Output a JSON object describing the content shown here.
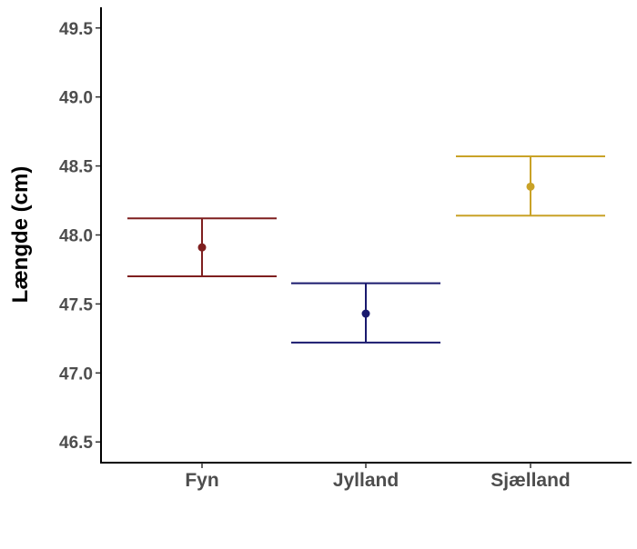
{
  "chart_data": {
    "type": "scatter",
    "subtype": "errorbar",
    "title": "",
    "xlabel": "",
    "ylabel": "Længde (cm)",
    "ylim": [
      46.35,
      49.65
    ],
    "yticks": [
      "46.5",
      "47.0",
      "47.5",
      "48.0",
      "48.5",
      "49.0",
      "49.5"
    ],
    "grid": false,
    "legend": "none",
    "categories": [
      "Fyn",
      "Jylland",
      "Sjælland"
    ],
    "series": [
      {
        "name": "Fyn",
        "mean": 47.91,
        "lower": 47.7,
        "upper": 48.12,
        "color": "#7f1f1f"
      },
      {
        "name": "Jylland",
        "mean": 47.43,
        "lower": 47.22,
        "upper": 47.65,
        "color": "#1a1a6e"
      },
      {
        "name": "Sjælland",
        "mean": 48.35,
        "lower": 48.14,
        "upper": 48.57,
        "color": "#c9a227"
      }
    ],
    "axis_color": "#000000",
    "tick_label_color": "#4d4d4d"
  }
}
